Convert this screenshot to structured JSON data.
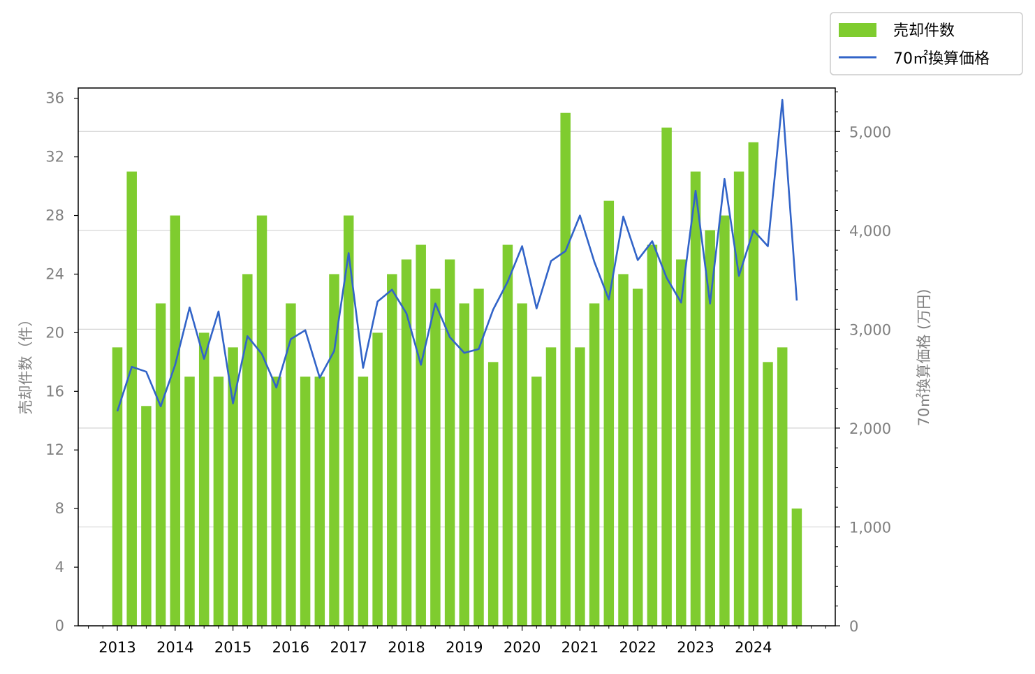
{
  "chart_data": {
    "type": "bar",
    "combo": "bar+line",
    "colors": {
      "bars": "#7fcc2f",
      "line": "#3264c8",
      "grid": "#d3d3d3",
      "tick_labels_y": "#808080"
    },
    "y_left": {
      "label": "売却件数（件）",
      "lim": [
        0,
        36.7
      ],
      "ticks": [
        0,
        4,
        8,
        12,
        16,
        20,
        24,
        28,
        32,
        36
      ]
    },
    "y_right": {
      "label": "70㎡換算価格 (万円)",
      "lim": [
        0,
        5440
      ],
      "ticks": [
        0,
        1000,
        2000,
        3000,
        4000,
        5000
      ],
      "tick_labels": [
        "0",
        "1,000",
        "2,000",
        "3,000",
        "4,000",
        "5,000"
      ],
      "grid": true
    },
    "x": {
      "labels": [
        "2013",
        "2014",
        "2015",
        "2016",
        "2017",
        "2018",
        "2019",
        "2020",
        "2021",
        "2022",
        "2023",
        "2024"
      ],
      "periods_per_year": 4,
      "start_year": 2013
    },
    "series": [
      {
        "name": "売却件数",
        "kind": "bar",
        "axis": "left",
        "values": [
          19,
          31,
          15,
          22,
          28,
          17,
          20,
          17,
          19,
          24,
          28,
          17,
          22,
          17,
          17,
          24,
          28,
          17,
          20,
          24,
          25,
          26,
          23,
          25,
          22,
          23,
          18,
          26,
          22,
          17,
          19,
          35,
          19,
          22,
          29,
          24,
          23,
          26,
          34,
          25,
          31,
          27,
          28,
          31,
          33,
          18,
          19,
          8
        ]
      },
      {
        "name": "70㎡換算価格",
        "kind": "line",
        "axis": "right",
        "values": [
          2170,
          2620,
          2570,
          2220,
          2640,
          3220,
          2700,
          3180,
          2250,
          2930,
          2750,
          2410,
          2900,
          2990,
          2510,
          2780,
          3770,
          2610,
          3280,
          3400,
          3160,
          2640,
          3260,
          2920,
          2760,
          2800,
          3200,
          3480,
          3840,
          3210,
          3690,
          3790,
          4150,
          3680,
          3300,
          4140,
          3700,
          3890,
          3520,
          3270,
          4400,
          3260,
          4520,
          3540,
          4000,
          3840,
          5320,
          3290
        ]
      }
    ],
    "legend": {
      "placement": "top-right, outside plot",
      "entries": [
        "売却件数",
        "70㎡換算価格"
      ]
    },
    "grid": {
      "y_right": true
    }
  }
}
